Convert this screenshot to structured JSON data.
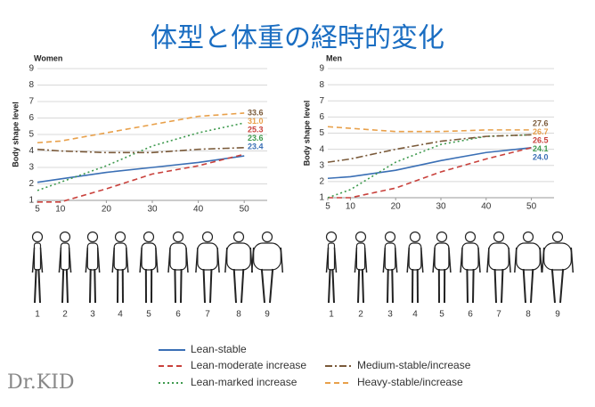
{
  "title": "体型と体重の経時的変化",
  "logo": "Dr.KID",
  "chart_data": [
    {
      "type": "line",
      "title": "Women",
      "y_label": "Body shape level",
      "x": [
        5,
        10,
        20,
        30,
        40,
        50
      ],
      "xlim": [
        5,
        55
      ],
      "xticks": [
        5,
        10,
        20,
        30,
        40,
        50
      ],
      "ylim": [
        1,
        9
      ],
      "yticks": [
        1,
        2,
        3,
        4,
        5,
        6,
        7,
        8,
        9
      ],
      "grid": true,
      "series": [
        {
          "name": "Lean-stable",
          "color": "#3a6fb5",
          "style": "solid",
          "values": [
            2.1,
            2.3,
            2.7,
            3.0,
            3.3,
            3.7
          ],
          "end_label": "23.4"
        },
        {
          "name": "Lean-moderate increase",
          "color": "#c9413c",
          "style": "dashed",
          "values": [
            0.9,
            0.9,
            1.7,
            2.6,
            3.1,
            3.8
          ],
          "end_label": "25.3"
        },
        {
          "name": "Lean-marked increase",
          "color": "#3e9a4e",
          "style": "dotted",
          "values": [
            1.6,
            2.1,
            3.1,
            4.3,
            5.1,
            5.7
          ],
          "end_label": "23.6"
        },
        {
          "name": "Medium-stable/increase",
          "color": "#7a5a3a",
          "style": "dashdot",
          "values": [
            4.1,
            4.0,
            3.9,
            3.9,
            4.1,
            4.2
          ],
          "end_label": "33.6"
        },
        {
          "name": "Heavy-stable/increase",
          "color": "#e8a04a",
          "style": "dashed",
          "values": [
            4.5,
            4.6,
            5.1,
            5.6,
            6.1,
            6.3
          ],
          "end_label": "31.0"
        }
      ],
      "silhouette_labels": [
        "1",
        "2",
        "3",
        "4",
        "5",
        "6",
        "7",
        "8",
        "9"
      ]
    },
    {
      "type": "line",
      "title": "Men",
      "y_label": "Body shape level",
      "x": [
        5,
        10,
        20,
        30,
        40,
        50
      ],
      "xlim": [
        5,
        55
      ],
      "xticks": [
        5,
        10,
        20,
        30,
        40,
        50
      ],
      "ylim": [
        1,
        9
      ],
      "yticks": [
        1,
        2,
        3,
        4,
        5,
        6,
        7,
        8,
        9
      ],
      "grid": true,
      "series": [
        {
          "name": "Lean-stable",
          "color": "#3a6fb5",
          "style": "solid",
          "values": [
            2.2,
            2.3,
            2.7,
            3.3,
            3.8,
            4.1
          ],
          "end_label": "24.0"
        },
        {
          "name": "Lean-moderate increase",
          "color": "#c9413c",
          "style": "dashed",
          "values": [
            1.0,
            1.0,
            1.6,
            2.6,
            3.4,
            4.1
          ],
          "end_label": "26.5"
        },
        {
          "name": "Lean-marked increase",
          "color": "#3e9a4e",
          "style": "dotted",
          "values": [
            1.0,
            1.5,
            3.2,
            4.3,
            4.8,
            4.9
          ],
          "end_label": "24.1"
        },
        {
          "name": "Medium-stable/increase",
          "color": "#7a5a3a",
          "style": "dashdot",
          "values": [
            3.2,
            3.4,
            4.0,
            4.5,
            4.8,
            4.9
          ],
          "end_label": "27.6"
        },
        {
          "name": "Heavy-stable/increase",
          "color": "#e8a04a",
          "style": "dashed",
          "values": [
            5.4,
            5.3,
            5.1,
            5.1,
            5.2,
            5.2
          ],
          "end_label": "26.7"
        }
      ],
      "silhouette_labels": [
        "1",
        "2",
        "3",
        "4",
        "5",
        "6",
        "7",
        "8",
        "9"
      ]
    }
  ]
}
